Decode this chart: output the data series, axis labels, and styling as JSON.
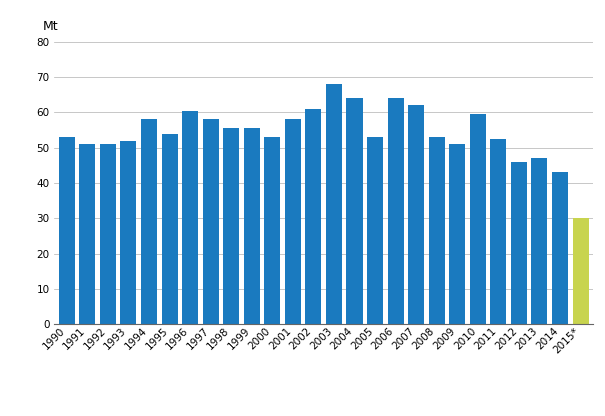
{
  "years": [
    "1990",
    "1991",
    "1992",
    "1993",
    "1994",
    "1995",
    "1996",
    "1997",
    "1998",
    "1999",
    "2000",
    "2001",
    "2002",
    "2003",
    "2004",
    "2005",
    "2006",
    "2007",
    "2008",
    "2009",
    "2010",
    "2011",
    "2012",
    "2013",
    "2014",
    "2015*"
  ],
  "values": [
    53,
    51,
    51,
    52,
    58,
    54,
    60.5,
    58,
    55.5,
    55.5,
    53,
    58,
    61,
    68,
    64,
    53,
    64,
    62,
    53,
    51,
    59.5,
    52.5,
    46,
    47,
    43,
    30
  ],
  "bar_colors": [
    "#1a7abf",
    "#1a7abf",
    "#1a7abf",
    "#1a7abf",
    "#1a7abf",
    "#1a7abf",
    "#1a7abf",
    "#1a7abf",
    "#1a7abf",
    "#1a7abf",
    "#1a7abf",
    "#1a7abf",
    "#1a7abf",
    "#1a7abf",
    "#1a7abf",
    "#1a7abf",
    "#1a7abf",
    "#1a7abf",
    "#1a7abf",
    "#1a7abf",
    "#1a7abf",
    "#1a7abf",
    "#1a7abf",
    "#1a7abf",
    "#1a7abf",
    "#c8d44e"
  ],
  "ylabel": "Mt",
  "ylim": [
    0,
    80
  ],
  "yticks": [
    0,
    10,
    20,
    30,
    40,
    50,
    60,
    70,
    80
  ],
  "background_color": "#ffffff",
  "grid_color": "#b0b0b0",
  "ylabel_fontsize": 9,
  "tick_fontsize": 7.5,
  "label_rotation": 45
}
